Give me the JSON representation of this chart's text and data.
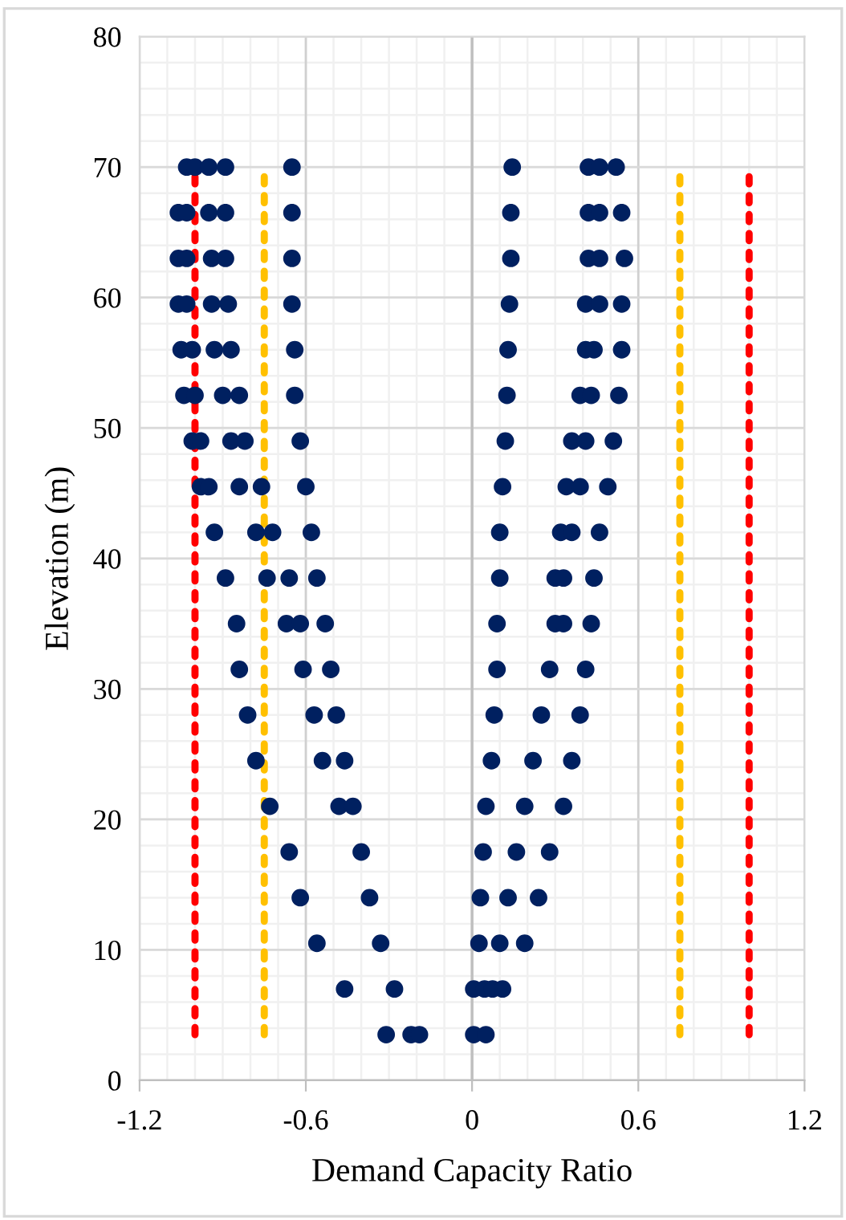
{
  "chart_data": {
    "type": "scatter",
    "xlabel": "Demand Capacity Ratio",
    "ylabel": "Elevation (m)",
    "xlim": [
      -1.2,
      1.2
    ],
    "xticks": [
      -1.2,
      -0.6,
      0,
      0.6,
      1.2
    ],
    "ylim": [
      0,
      80
    ],
    "yticks": [
      0,
      10,
      20,
      30,
      40,
      50,
      60,
      70,
      80
    ],
    "grid": true,
    "legend": false,
    "series": [
      {
        "marker": "circle",
        "color": "#002060",
        "x": [
          -1.03,
          -1.0,
          -0.95,
          -0.89,
          -0.65,
          -1.06,
          -1.03,
          -0.95,
          -0.89,
          -0.65,
          -1.06,
          -1.03,
          -0.94,
          -0.89,
          -0.65,
          -1.06,
          -1.03,
          -0.94,
          -0.88,
          -0.65,
          -1.05,
          -1.01,
          -0.93,
          -0.87,
          -0.64,
          -1.04,
          -1.0,
          -0.9,
          -0.84,
          -0.64,
          -1.01,
          -0.98,
          -0.87,
          -0.82,
          -0.62,
          -0.98,
          -0.95,
          -0.84,
          -0.76,
          -0.6,
          -0.93,
          -0.78,
          -0.72,
          -0.58,
          -0.89,
          -0.74,
          -0.66,
          -0.56,
          -0.85,
          -0.67,
          -0.62,
          -0.53,
          -0.84,
          -0.61,
          -0.51,
          -0.81,
          -0.57,
          -0.49,
          -0.78,
          -0.54,
          -0.46,
          -0.73,
          -0.48,
          -0.43,
          -0.66,
          -0.4,
          -0.62,
          -0.37,
          -0.56,
          -0.33,
          -0.46,
          -0.28,
          -0.31,
          -0.22,
          -0.19,
          0.145,
          0.42,
          0.46,
          0.52,
          0.14,
          0.42,
          0.46,
          0.54,
          0.14,
          0.42,
          0.46,
          0.55,
          0.135,
          0.41,
          0.46,
          0.54,
          0.13,
          0.41,
          0.44,
          0.54,
          0.126,
          0.39,
          0.43,
          0.53,
          0.12,
          0.36,
          0.41,
          0.51,
          0.11,
          0.34,
          0.39,
          0.49,
          0.1,
          0.32,
          0.36,
          0.46,
          0.1,
          0.3,
          0.33,
          0.44,
          0.09,
          0.3,
          0.33,
          0.43,
          0.09,
          0.28,
          0.41,
          0.08,
          0.25,
          0.39,
          0.07,
          0.22,
          0.36,
          0.05,
          0.19,
          0.33,
          0.04,
          0.16,
          0.28,
          0.03,
          0.13,
          0.24,
          0.025,
          0.1,
          0.19,
          0.006,
          0.045,
          0.074,
          0.11,
          0.006,
          0.05
        ],
        "values": [
          70,
          70,
          70,
          70,
          70,
          66.5,
          66.5,
          66.5,
          66.5,
          66.5,
          63,
          63,
          63,
          63,
          63,
          59.5,
          59.5,
          59.5,
          59.5,
          59.5,
          56,
          56,
          56,
          56,
          56,
          52.5,
          52.5,
          52.5,
          52.5,
          52.5,
          49,
          49,
          49,
          49,
          49,
          45.5,
          45.5,
          45.5,
          45.5,
          45.5,
          42,
          42,
          42,
          42,
          38.5,
          38.5,
          38.5,
          38.5,
          35,
          35,
          35,
          35,
          31.5,
          31.5,
          31.5,
          28,
          28,
          28,
          24.5,
          24.5,
          24.5,
          21,
          21,
          21,
          17.5,
          17.5,
          14,
          14,
          10.5,
          10.5,
          7,
          7,
          3.5,
          3.5,
          3.5,
          70,
          70,
          70,
          70,
          66.5,
          66.5,
          66.5,
          66.5,
          63,
          63,
          63,
          63,
          59.5,
          59.5,
          59.5,
          59.5,
          56,
          56,
          56,
          56,
          52.5,
          52.5,
          52.5,
          52.5,
          49,
          49,
          49,
          49,
          45.5,
          45.5,
          45.5,
          45.5,
          42,
          42,
          42,
          42,
          38.5,
          38.5,
          38.5,
          38.5,
          35,
          35,
          35,
          35,
          31.5,
          31.5,
          31.5,
          28,
          28,
          28,
          24.5,
          24.5,
          24.5,
          21,
          21,
          21,
          17.5,
          17.5,
          17.5,
          14,
          14,
          14,
          10.5,
          10.5,
          10.5,
          7,
          7,
          7,
          7,
          3.5,
          3.5
        ]
      },
      {
        "type": "line",
        "line_style": "dotted",
        "color": "#ff0000",
        "x": [
          -1.0,
          -1.0
        ],
        "values": [
          3.5,
          70
        ]
      },
      {
        "type": "line",
        "line_style": "dotted",
        "color": "#ff0000",
        "x": [
          1.0,
          1.0
        ],
        "values": [
          3.5,
          70
        ]
      },
      {
        "type": "line",
        "line_style": "dotted",
        "color": "#ffc000",
        "x": [
          -0.75,
          -0.75
        ],
        "values": [
          3.5,
          70
        ]
      },
      {
        "type": "line",
        "line_style": "dotted",
        "color": "#ffc000",
        "x": [
          0.75,
          0.75
        ],
        "values": [
          3.5,
          70
        ]
      }
    ]
  }
}
